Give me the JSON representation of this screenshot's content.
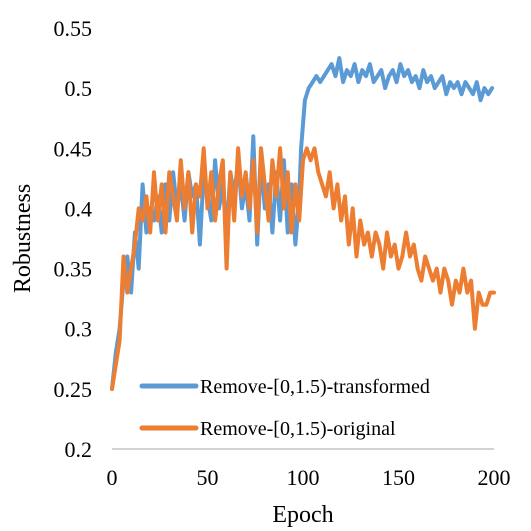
{
  "colors": {
    "series_blue": "#5B9BD5",
    "series_orange": "#ED7D31",
    "axis": "#A6A6A6",
    "text": "#000000",
    "background": "#FFFFFF"
  },
  "chart_data": {
    "type": "line",
    "xlabel": "Epoch",
    "ylabel": "Robustness",
    "xlim": [
      0,
      200
    ],
    "ylim": [
      0.2,
      0.55
    ],
    "x_ticks": [
      0,
      50,
      100,
      150,
      200
    ],
    "y_ticks": [
      0.2,
      0.25,
      0.3,
      0.35,
      0.4,
      0.45,
      0.5,
      0.55
    ],
    "x_tick_labels": [
      "0",
      "50",
      "100",
      "150",
      "200"
    ],
    "y_tick_labels": [
      "0.2",
      "0.25",
      "0.3",
      "0.35",
      "0.4",
      "0.45",
      "0.5",
      "0.55"
    ],
    "grid": false,
    "legend_position": "bottom-right",
    "series": [
      {
        "name": "Remove-[0,1.5)-transformed",
        "color": "#5B9BD5",
        "points": [
          [
            0,
            0.25
          ],
          [
            2,
            0.28
          ],
          [
            4,
            0.3
          ],
          [
            6,
            0.34
          ],
          [
            8,
            0.36
          ],
          [
            10,
            0.33
          ],
          [
            12,
            0.38
          ],
          [
            14,
            0.35
          ],
          [
            16,
            0.42
          ],
          [
            18,
            0.38
          ],
          [
            20,
            0.4
          ],
          [
            22,
            0.39
          ],
          [
            24,
            0.41
          ],
          [
            26,
            0.38
          ],
          [
            28,
            0.42
          ],
          [
            30,
            0.39
          ],
          [
            32,
            0.43
          ],
          [
            34,
            0.4
          ],
          [
            36,
            0.42
          ],
          [
            38,
            0.39
          ],
          [
            40,
            0.43
          ],
          [
            42,
            0.41
          ],
          [
            44,
            0.42
          ],
          [
            46,
            0.37
          ],
          [
            48,
            0.43
          ],
          [
            50,
            0.41
          ],
          [
            52,
            0.39
          ],
          [
            54,
            0.44
          ],
          [
            56,
            0.4
          ],
          [
            58,
            0.42
          ],
          [
            60,
            0.38
          ],
          [
            62,
            0.43
          ],
          [
            64,
            0.41
          ],
          [
            66,
            0.44
          ],
          [
            68,
            0.4
          ],
          [
            70,
            0.42
          ],
          [
            72,
            0.39
          ],
          [
            74,
            0.46
          ],
          [
            76,
            0.37
          ],
          [
            78,
            0.44
          ],
          [
            80,
            0.4
          ],
          [
            82,
            0.42
          ],
          [
            84,
            0.38
          ],
          [
            86,
            0.43
          ],
          [
            88,
            0.39
          ],
          [
            90,
            0.44
          ],
          [
            92,
            0.38
          ],
          [
            94,
            0.42
          ],
          [
            96,
            0.37
          ],
          [
            98,
            0.41
          ],
          [
            99,
            0.45
          ],
          [
            100,
            0.47
          ],
          [
            101,
            0.49
          ],
          [
            103,
            0.5
          ],
          [
            105,
            0.505
          ],
          [
            107,
            0.51
          ],
          [
            109,
            0.505
          ],
          [
            111,
            0.51
          ],
          [
            113,
            0.515
          ],
          [
            115,
            0.52
          ],
          [
            117,
            0.51
          ],
          [
            119,
            0.525
          ],
          [
            121,
            0.505
          ],
          [
            123,
            0.515
          ],
          [
            125,
            0.51
          ],
          [
            127,
            0.52
          ],
          [
            129,
            0.505
          ],
          [
            131,
            0.515
          ],
          [
            133,
            0.51
          ],
          [
            135,
            0.52
          ],
          [
            137,
            0.505
          ],
          [
            139,
            0.51
          ],
          [
            141,
            0.515
          ],
          [
            143,
            0.5
          ],
          [
            145,
            0.51
          ],
          [
            147,
            0.515
          ],
          [
            149,
            0.505
          ],
          [
            151,
            0.52
          ],
          [
            153,
            0.51
          ],
          [
            155,
            0.515
          ],
          [
            157,
            0.505
          ],
          [
            159,
            0.51
          ],
          [
            161,
            0.5
          ],
          [
            163,
            0.515
          ],
          [
            165,
            0.505
          ],
          [
            167,
            0.51
          ],
          [
            169,
            0.5
          ],
          [
            171,
            0.505
          ],
          [
            173,
            0.51
          ],
          [
            175,
            0.495
          ],
          [
            177,
            0.505
          ],
          [
            179,
            0.5
          ],
          [
            181,
            0.505
          ],
          [
            183,
            0.495
          ],
          [
            185,
            0.505
          ],
          [
            187,
            0.5
          ],
          [
            189,
            0.495
          ],
          [
            191,
            0.505
          ],
          [
            193,
            0.49
          ],
          [
            195,
            0.5
          ],
          [
            197,
            0.495
          ],
          [
            199,
            0.5
          ]
        ]
      },
      {
        "name": "Remove-[0,1.5)-original",
        "color": "#ED7D31",
        "points": [
          [
            0,
            0.25
          ],
          [
            2,
            0.27
          ],
          [
            4,
            0.29
          ],
          [
            6,
            0.36
          ],
          [
            8,
            0.33
          ],
          [
            10,
            0.35
          ],
          [
            12,
            0.37
          ],
          [
            14,
            0.4
          ],
          [
            16,
            0.39
          ],
          [
            18,
            0.41
          ],
          [
            20,
            0.38
          ],
          [
            22,
            0.43
          ],
          [
            24,
            0.39
          ],
          [
            26,
            0.42
          ],
          [
            28,
            0.38
          ],
          [
            30,
            0.43
          ],
          [
            32,
            0.41
          ],
          [
            34,
            0.39
          ],
          [
            36,
            0.44
          ],
          [
            38,
            0.4
          ],
          [
            40,
            0.43
          ],
          [
            42,
            0.38
          ],
          [
            44,
            0.42
          ],
          [
            46,
            0.41
          ],
          [
            48,
            0.45
          ],
          [
            50,
            0.4
          ],
          [
            52,
            0.43
          ],
          [
            54,
            0.39
          ],
          [
            56,
            0.42
          ],
          [
            58,
            0.44
          ],
          [
            60,
            0.35
          ],
          [
            62,
            0.43
          ],
          [
            64,
            0.39
          ],
          [
            66,
            0.45
          ],
          [
            68,
            0.41
          ],
          [
            70,
            0.43
          ],
          [
            72,
            0.4
          ],
          [
            74,
            0.44
          ],
          [
            76,
            0.38
          ],
          [
            78,
            0.45
          ],
          [
            80,
            0.42
          ],
          [
            82,
            0.39
          ],
          [
            84,
            0.44
          ],
          [
            86,
            0.41
          ],
          [
            88,
            0.45
          ],
          [
            90,
            0.4
          ],
          [
            92,
            0.43
          ],
          [
            94,
            0.38
          ],
          [
            96,
            0.42
          ],
          [
            98,
            0.39
          ],
          [
            100,
            0.44
          ],
          [
            102,
            0.45
          ],
          [
            104,
            0.44
          ],
          [
            106,
            0.45
          ],
          [
            108,
            0.43
          ],
          [
            110,
            0.42
          ],
          [
            112,
            0.41
          ],
          [
            114,
            0.43
          ],
          [
            116,
            0.4
          ],
          [
            118,
            0.42
          ],
          [
            120,
            0.39
          ],
          [
            122,
            0.41
          ],
          [
            124,
            0.37
          ],
          [
            126,
            0.4
          ],
          [
            128,
            0.36
          ],
          [
            130,
            0.39
          ],
          [
            132,
            0.37
          ],
          [
            134,
            0.38
          ],
          [
            136,
            0.36
          ],
          [
            138,
            0.38
          ],
          [
            140,
            0.37
          ],
          [
            142,
            0.35
          ],
          [
            144,
            0.38
          ],
          [
            146,
            0.36
          ],
          [
            148,
            0.37
          ],
          [
            150,
            0.35
          ],
          [
            152,
            0.36
          ],
          [
            154,
            0.38
          ],
          [
            156,
            0.36
          ],
          [
            158,
            0.37
          ],
          [
            160,
            0.35
          ],
          [
            162,
            0.34
          ],
          [
            164,
            0.36
          ],
          [
            166,
            0.35
          ],
          [
            168,
            0.34
          ],
          [
            170,
            0.35
          ],
          [
            172,
            0.33
          ],
          [
            174,
            0.35
          ],
          [
            176,
            0.34
          ],
          [
            178,
            0.32
          ],
          [
            180,
            0.34
          ],
          [
            182,
            0.33
          ],
          [
            184,
            0.35
          ],
          [
            186,
            0.33
          ],
          [
            188,
            0.34
          ],
          [
            190,
            0.3
          ],
          [
            192,
            0.33
          ],
          [
            194,
            0.32
          ],
          [
            196,
            0.32
          ],
          [
            198,
            0.33
          ],
          [
            200,
            0.33
          ]
        ]
      }
    ]
  }
}
